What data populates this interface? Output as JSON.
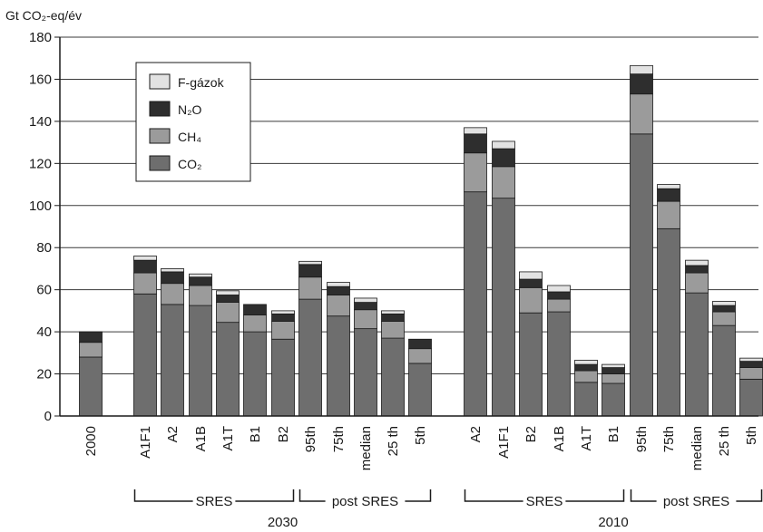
{
  "chart_data": {
    "type": "bar",
    "stacked": true,
    "ylabel": "Gt CO₂-eq/év",
    "ylim": [
      0,
      180
    ],
    "yticks": [
      0,
      20,
      40,
      60,
      80,
      100,
      120,
      140,
      160,
      180
    ],
    "grid": true,
    "legend_position": "top-left",
    "categories": [
      "2000",
      "A1F1",
      "A2",
      "A1B",
      "A1T",
      "B1",
      "B2",
      "95th",
      "75th",
      "median",
      "25 th",
      "5th",
      "A2",
      "A1F1",
      "B2",
      "A1B",
      "A1T",
      "B1",
      "95th",
      "75th",
      "median",
      "25 th",
      "5th"
    ],
    "series": [
      {
        "name": "CO₂",
        "color": "#6e6e6e",
        "values": [
          28,
          58,
          53,
          52.5,
          44.5,
          40,
          36.5,
          55.5,
          47.5,
          41.5,
          37,
          25,
          106.5,
          103.5,
          49,
          49.5,
          16,
          15.5,
          134,
          89,
          58.5,
          43,
          17.5
        ]
      },
      {
        "name": "CH₄",
        "color": "#9b9b9b",
        "values": [
          7,
          10,
          10,
          9.5,
          9.5,
          8,
          8.5,
          10.5,
          10,
          9,
          8,
          7,
          18.5,
          15,
          12,
          6,
          5.5,
          4.5,
          19,
          13,
          9.5,
          6.5,
          5.5
        ]
      },
      {
        "name": "N₂O",
        "color": "#2e2e2e",
        "values": [
          5,
          6,
          5.5,
          4,
          3.5,
          5,
          3.5,
          6,
          4,
          3.5,
          3.5,
          4.5,
          9,
          8.5,
          4,
          3.5,
          3,
          3,
          9.5,
          6,
          3.5,
          3,
          3
        ]
      },
      {
        "name": "F-gázok",
        "color": "#e2e2e2",
        "values": [
          0,
          2,
          1.5,
          1.5,
          2,
          0,
          1.5,
          1.5,
          2,
          2,
          1.5,
          0,
          3,
          3.5,
          3.5,
          3,
          2,
          1.5,
          4,
          2,
          2.5,
          2,
          1.5
        ]
      }
    ],
    "groups": [
      {
        "label": "SRES",
        "from": 1,
        "to": 6
      },
      {
        "label": "post SRES",
        "from": 7,
        "to": 11
      },
      {
        "label": "SRES",
        "from": 12,
        "to": 17
      },
      {
        "label": "post SRES",
        "from": 18,
        "to": 22
      }
    ],
    "super_groups": [
      {
        "label": "2030",
        "from": 1,
        "to": 11
      },
      {
        "label": "2010",
        "from": 12,
        "to": 22
      }
    ]
  }
}
